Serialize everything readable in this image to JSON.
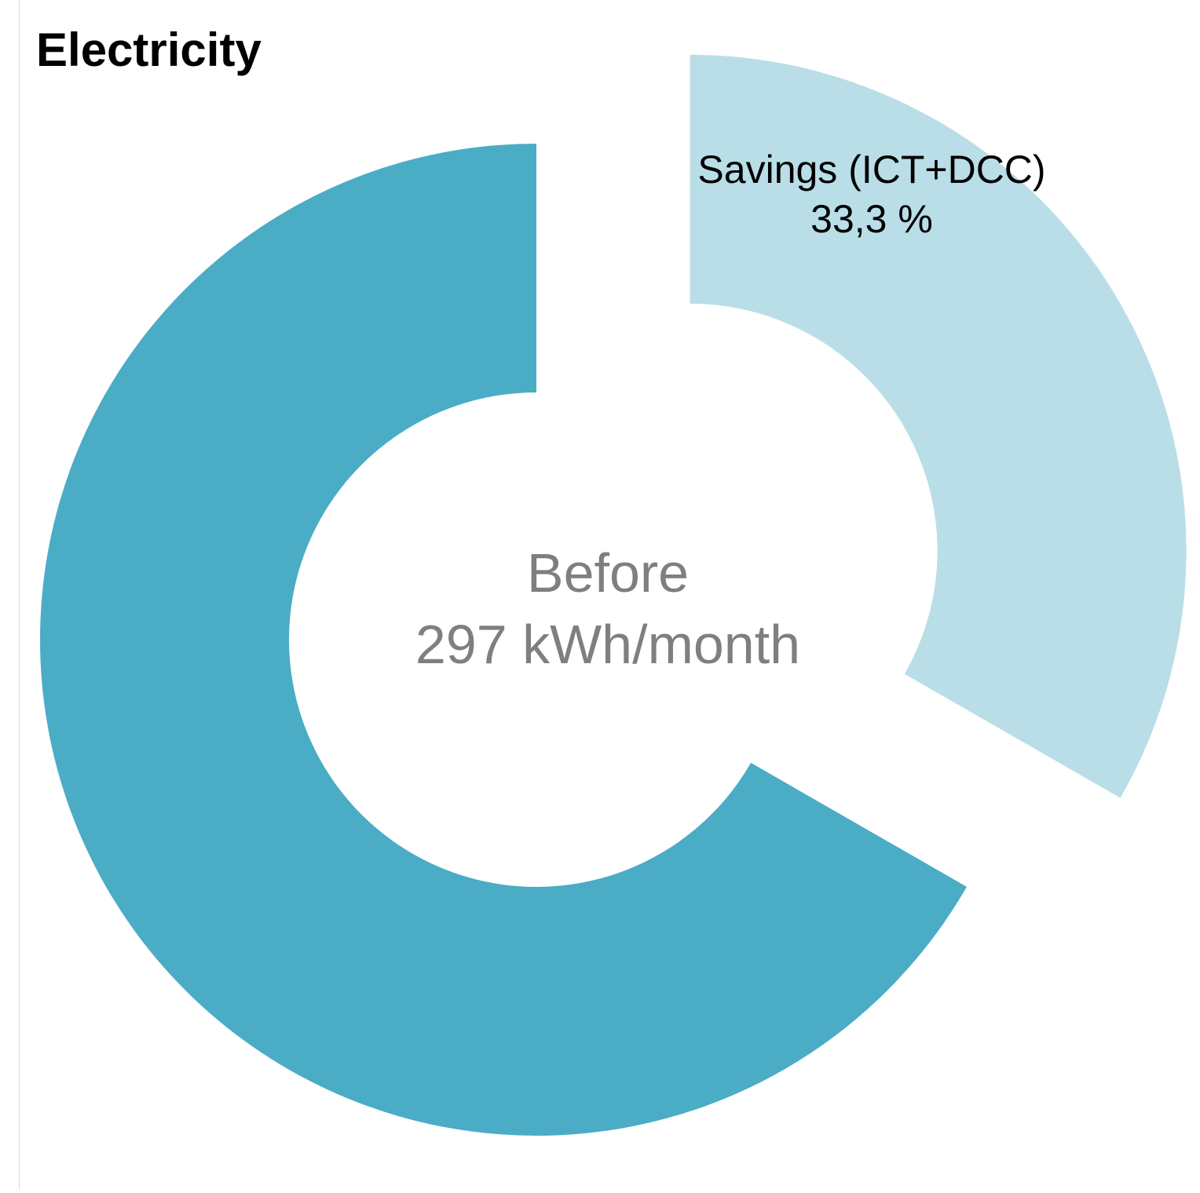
{
  "chart_data": {
    "type": "pie",
    "title": "Electricity",
    "colors": {
      "before": "#4bacc6",
      "savings": "#b9dee7"
    },
    "slices": [
      {
        "key": "savings",
        "label": "Savings (ICT+DCC)",
        "value_text": "33,3 %",
        "share": 0.333,
        "exploded": true
      },
      {
        "key": "before",
        "label": "",
        "share": 0.667,
        "exploded": false
      }
    ],
    "center_label": {
      "line1": "Before",
      "line2": "297 kWh/month"
    }
  }
}
